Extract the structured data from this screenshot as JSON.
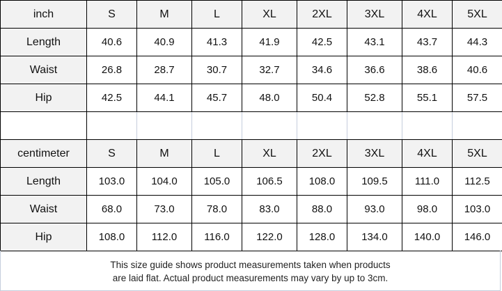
{
  "tables": [
    {
      "unit": "inch",
      "sizes": [
        "S",
        "M",
        "L",
        "XL",
        "2XL",
        "3XL",
        "4XL",
        "5XL"
      ],
      "rows": [
        {
          "label": "Length",
          "values": [
            "40.6",
            "40.9",
            "41.3",
            "41.9",
            "42.5",
            "43.1",
            "43.7",
            "44.3"
          ]
        },
        {
          "label": "Waist",
          "values": [
            "26.8",
            "28.7",
            "30.7",
            "32.7",
            "34.6",
            "36.6",
            "38.6",
            "40.6"
          ]
        },
        {
          "label": "Hip",
          "values": [
            "42.5",
            "44.1",
            "45.7",
            "48.0",
            "50.4",
            "52.8",
            "55.1",
            "57.5"
          ]
        }
      ]
    },
    {
      "unit": "centimeter",
      "sizes": [
        "S",
        "M",
        "L",
        "XL",
        "2XL",
        "3XL",
        "4XL",
        "5XL"
      ],
      "rows": [
        {
          "label": "Length",
          "values": [
            "103.0",
            "104.0",
            "105.0",
            "106.5",
            "108.0",
            "109.5",
            "111.0",
            "112.5"
          ]
        },
        {
          "label": "Waist",
          "values": [
            "68.0",
            "73.0",
            "78.0",
            "83.0",
            "88.0",
            "93.0",
            "98.0",
            "103.0"
          ]
        },
        {
          "label": "Hip",
          "values": [
            "108.0",
            "112.0",
            "116.0",
            "122.0",
            "128.0",
            "134.0",
            "140.0",
            "146.0"
          ]
        }
      ]
    }
  ],
  "note": {
    "line1": "This size guide shows product measurements taken when products",
    "line2": "are laid flat. Actual product measurements may vary by up to 3cm."
  }
}
